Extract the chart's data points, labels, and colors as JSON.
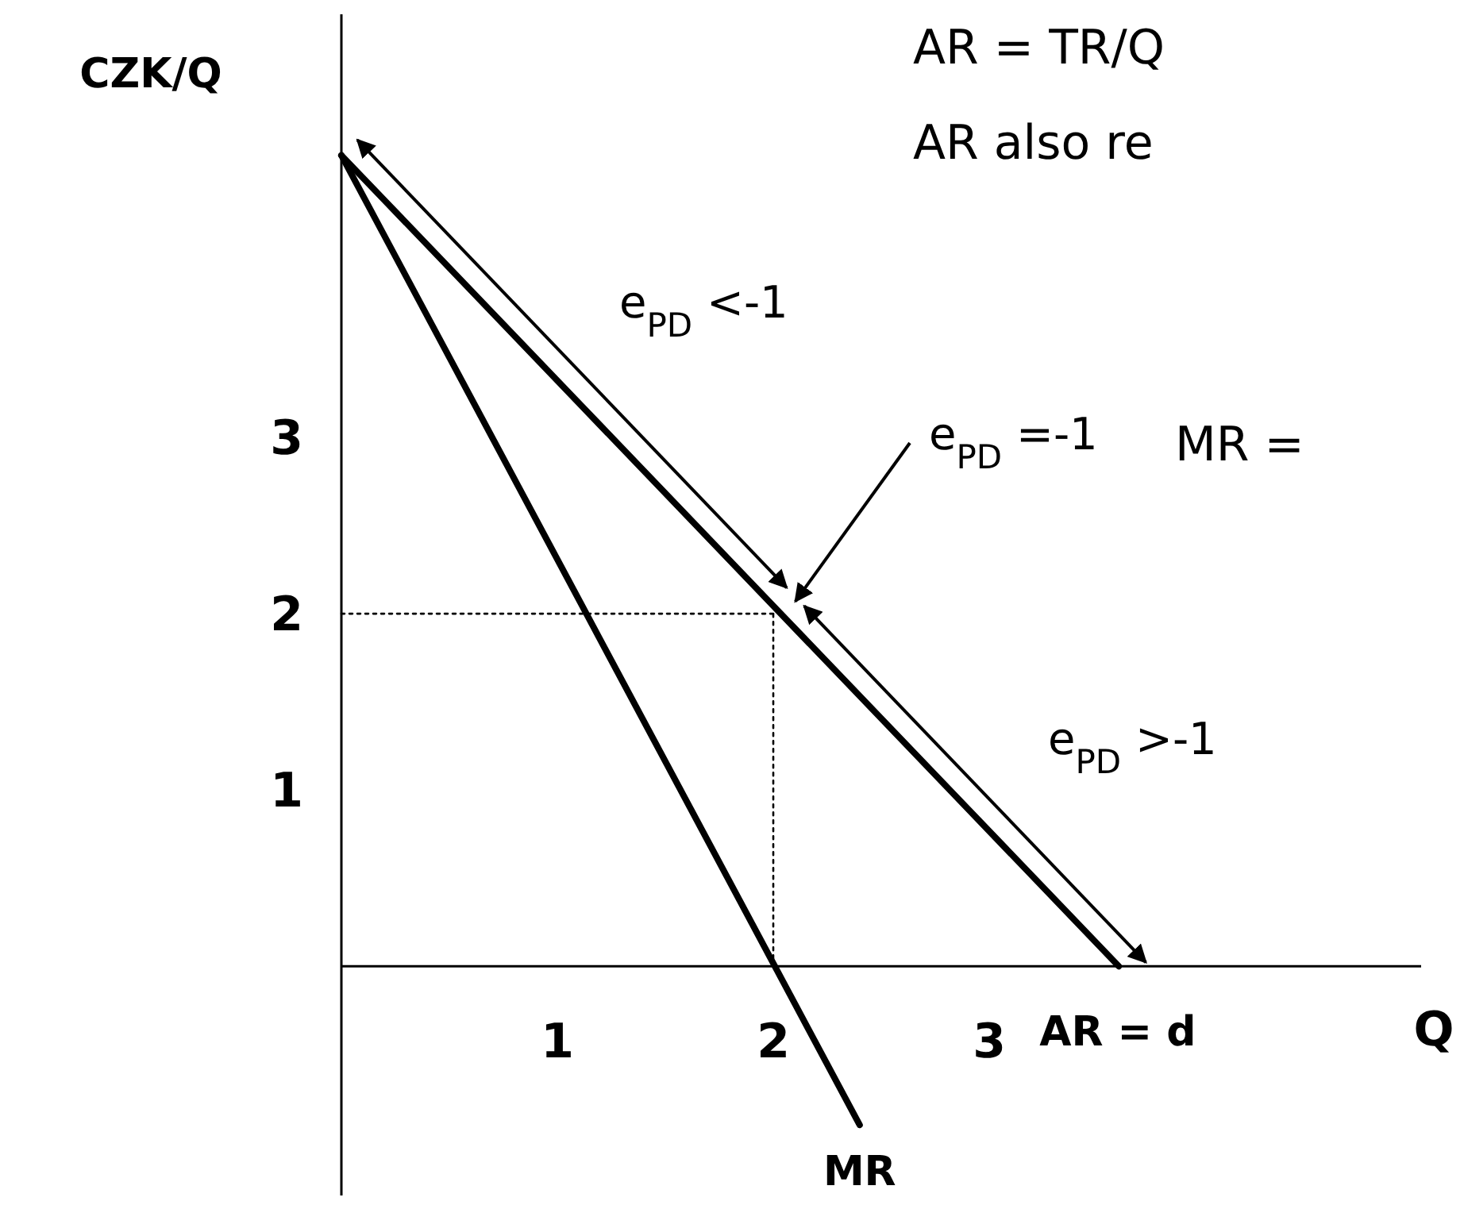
{
  "chart_data": {
    "type": "line",
    "xlabel": "Q",
    "ylabel": "CZK/Q",
    "xlim": [
      0,
      5
    ],
    "ylim": [
      -1.3,
      5.4
    ],
    "xticks": [
      1,
      2,
      3
    ],
    "yticks": [
      1,
      2,
      3
    ],
    "grid": false,
    "legend": false,
    "marker": "none",
    "series": [
      {
        "name": "AR = d",
        "color": "#000000",
        "x": [
          0,
          3.6
        ],
        "values": [
          4.6,
          0
        ]
      },
      {
        "name": "MR",
        "color": "#000000",
        "x": [
          0,
          2.4
        ],
        "values": [
          4.6,
          -0.9
        ]
      },
      {
        "color": "#000000",
        "x": [
          0,
          2
        ],
        "values": [
          2,
          2
        ],
        "line_style": "dotted"
      },
      {
        "color": "#000000",
        "x": [
          2,
          2
        ],
        "values": [
          0,
          2
        ],
        "line_style": "dotted"
      }
    ],
    "annotations": [
      "e$_{PD}$ <-1",
      "e$_{PD}$ =-1",
      "e$_{PD}$ >-1",
      "AR = TR/Q",
      "AR also re",
      "MR ="
    ]
  }
}
